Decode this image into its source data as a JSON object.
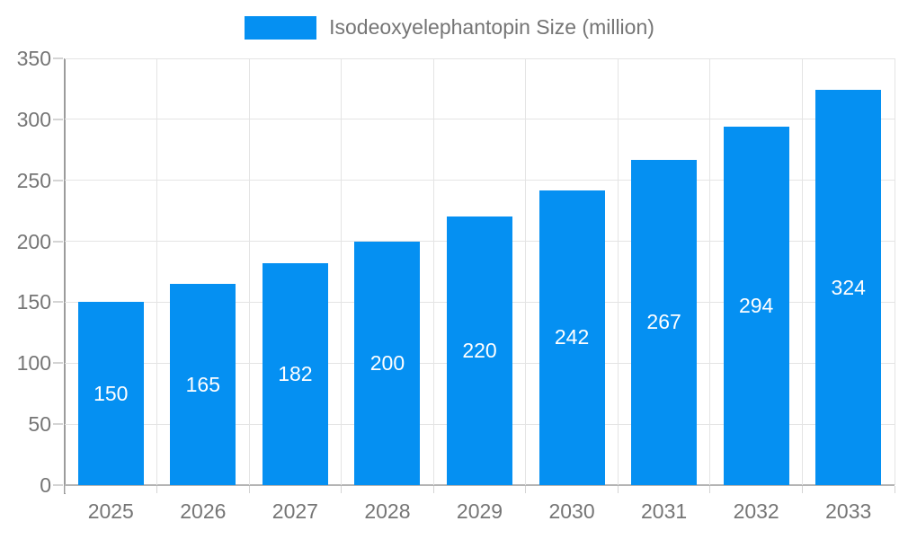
{
  "legend": {
    "label": "Isodeoxyelephantopin Size (million)",
    "swatch_color": "#0590f2"
  },
  "chart_data": {
    "type": "bar",
    "title": "",
    "xlabel": "",
    "ylabel": "",
    "categories": [
      "2025",
      "2026",
      "2027",
      "2028",
      "2029",
      "2030",
      "2031",
      "2032",
      "2033"
    ],
    "series": [
      {
        "name": "Isodeoxyelephantopin Size (million)",
        "values": [
          150,
          165,
          182,
          200,
          220,
          242,
          267,
          294,
          324
        ]
      }
    ],
    "ylim": [
      0,
      350
    ],
    "yticks": [
      0,
      50,
      100,
      150,
      200,
      250,
      300,
      350
    ],
    "grid": true,
    "legend_position": "top",
    "bar_color": "#0590f2",
    "value_label_color": "#ffffff",
    "axis_text_color": "#757575"
  }
}
